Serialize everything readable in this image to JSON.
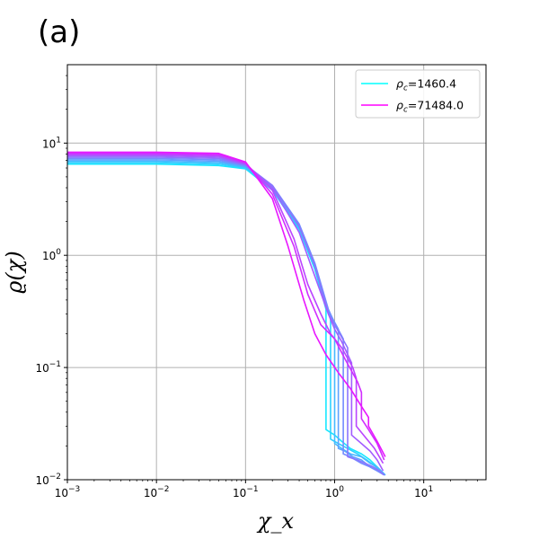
{
  "panel_label": "(a)",
  "chart_data": {
    "type": "line",
    "xlabel": "χ_x",
    "ylabel": "ϱ(χ)",
    "xscale": "log",
    "yscale": "log",
    "xlim": [
      0.001,
      50
    ],
    "ylim": [
      0.01,
      50
    ],
    "grid": true,
    "legend_position": "top-right",
    "x_ticks": [
      {
        "value": 0.001,
        "base": "10",
        "exp": "−3"
      },
      {
        "value": 0.01,
        "base": "10",
        "exp": "−2"
      },
      {
        "value": 0.1,
        "base": "10",
        "exp": "−1"
      },
      {
        "value": 1,
        "base": "10",
        "exp": "0"
      },
      {
        "value": 10,
        "base": "10",
        "exp": "1"
      }
    ],
    "y_ticks": [
      {
        "value": 0.01,
        "base": "10",
        "exp": "−2"
      },
      {
        "value": 0.1,
        "base": "10",
        "exp": "−1"
      },
      {
        "value": 1,
        "base": "10",
        "exp": "0"
      },
      {
        "value": 10,
        "base": "10",
        "exp": "1"
      }
    ],
    "legend": [
      {
        "rho_c": "1460.4",
        "color": "#00ffff"
      },
      {
        "rho_c": "71484.0",
        "color": "#ff00ff"
      }
    ],
    "series": [
      {
        "color": "#18e7ff",
        "x": [
          0.001,
          0.01,
          0.05,
          0.1,
          0.2,
          0.4,
          0.6,
          0.8,
          0.8,
          1.0,
          1.2,
          1.5,
          2.0,
          2.5,
          3.0,
          3.7
        ],
        "y": [
          6.5,
          6.5,
          6.3,
          5.9,
          3.8,
          1.7,
          0.75,
          0.33,
          0.028,
          0.025,
          0.022,
          0.019,
          0.017,
          0.015,
          0.013,
          0.011
        ]
      },
      {
        "color": "#2ed1ff",
        "x": [
          0.001,
          0.01,
          0.05,
          0.1,
          0.2,
          0.4,
          0.6,
          0.85,
          0.9,
          0.9,
          1.1,
          1.4,
          1.8,
          2.3,
          2.9,
          3.7
        ],
        "y": [
          6.7,
          6.7,
          6.5,
          6.0,
          3.9,
          1.75,
          0.78,
          0.32,
          0.27,
          0.023,
          0.021,
          0.019,
          0.017,
          0.015,
          0.013,
          0.011
        ]
      },
      {
        "color": "#46b9ff",
        "x": [
          0.001,
          0.01,
          0.05,
          0.1,
          0.2,
          0.4,
          0.6,
          0.85,
          1.0,
          1.0,
          1.2,
          1.5,
          2.0,
          2.5,
          3.0,
          3.7
        ],
        "y": [
          6.9,
          6.9,
          6.7,
          6.1,
          4.0,
          1.8,
          0.8,
          0.32,
          0.24,
          0.021,
          0.019,
          0.017,
          0.016,
          0.014,
          0.013,
          0.011
        ]
      },
      {
        "color": "#5da2ff",
        "x": [
          0.001,
          0.01,
          0.05,
          0.1,
          0.2,
          0.4,
          0.6,
          0.85,
          1.1,
          1.1,
          1.3,
          1.6,
          2.0,
          2.5,
          3.0,
          3.7
        ],
        "y": [
          7.1,
          7.1,
          6.9,
          6.2,
          4.1,
          1.85,
          0.82,
          0.32,
          0.22,
          0.019,
          0.018,
          0.016,
          0.015,
          0.013,
          0.012,
          0.011
        ]
      },
      {
        "color": "#748bff",
        "x": [
          0.001,
          0.01,
          0.05,
          0.1,
          0.2,
          0.4,
          0.6,
          0.85,
          1.0,
          1.25,
          1.25,
          1.5,
          2.0,
          2.5,
          3.0,
          3.6
        ],
        "y": [
          7.3,
          7.3,
          7.1,
          6.3,
          4.2,
          1.9,
          0.85,
          0.33,
          0.25,
          0.18,
          0.017,
          0.016,
          0.014,
          0.013,
          0.012,
          0.011
        ]
      },
      {
        "color": "#8b74ff",
        "x": [
          0.001,
          0.01,
          0.05,
          0.1,
          0.2,
          0.4,
          0.6,
          0.85,
          1.0,
          1.4,
          1.4,
          1.8,
          2.2,
          2.7,
          3.2,
          3.6
        ],
        "y": [
          7.5,
          7.5,
          7.3,
          6.4,
          4.2,
          1.8,
          0.8,
          0.3,
          0.24,
          0.15,
          0.016,
          0.015,
          0.014,
          0.013,
          0.012,
          0.011
        ]
      },
      {
        "color": "#a25dff",
        "x": [
          0.001,
          0.01,
          0.05,
          0.1,
          0.2,
          0.4,
          0.6,
          0.85,
          1.0,
          1.2,
          1.55,
          1.55,
          2.0,
          2.5,
          3.0,
          3.5
        ],
        "y": [
          7.7,
          7.7,
          7.5,
          6.5,
          4.0,
          1.6,
          0.65,
          0.3,
          0.22,
          0.17,
          0.11,
          0.025,
          0.021,
          0.018,
          0.015,
          0.012
        ]
      },
      {
        "color": "#ba45ff",
        "x": [
          0.001,
          0.01,
          0.05,
          0.1,
          0.2,
          0.35,
          0.5,
          0.7,
          0.9,
          1.2,
          1.6,
          1.75,
          1.75,
          2.2,
          2.8,
          3.5
        ],
        "y": [
          7.9,
          7.9,
          7.7,
          6.6,
          3.8,
          1.4,
          0.55,
          0.3,
          0.2,
          0.15,
          0.1,
          0.08,
          0.03,
          0.024,
          0.019,
          0.014
        ]
      },
      {
        "color": "#d12eff",
        "x": [
          0.001,
          0.01,
          0.05,
          0.1,
          0.2,
          0.35,
          0.5,
          0.7,
          1.0,
          1.3,
          1.8,
          2.0,
          2.0,
          2.4,
          3.0,
          3.6
        ],
        "y": [
          8.1,
          8.1,
          7.9,
          6.7,
          3.5,
          1.2,
          0.45,
          0.24,
          0.18,
          0.12,
          0.075,
          0.06,
          0.035,
          0.028,
          0.021,
          0.015
        ]
      },
      {
        "color": "#e817ff",
        "x": [
          0.001,
          0.01,
          0.05,
          0.1,
          0.2,
          0.3,
          0.45,
          0.6,
          0.8,
          1.1,
          1.5,
          2.0,
          2.4,
          2.4,
          3.0,
          3.7
        ],
        "y": [
          8.3,
          8.3,
          8.1,
          6.8,
          3.2,
          1.2,
          0.4,
          0.2,
          0.13,
          0.09,
          0.065,
          0.045,
          0.036,
          0.03,
          0.022,
          0.016
        ]
      }
    ]
  },
  "colors": {
    "axes_edge": "#000000",
    "grid": "#b0b0b0",
    "legend_frame": "#cccccc"
  }
}
